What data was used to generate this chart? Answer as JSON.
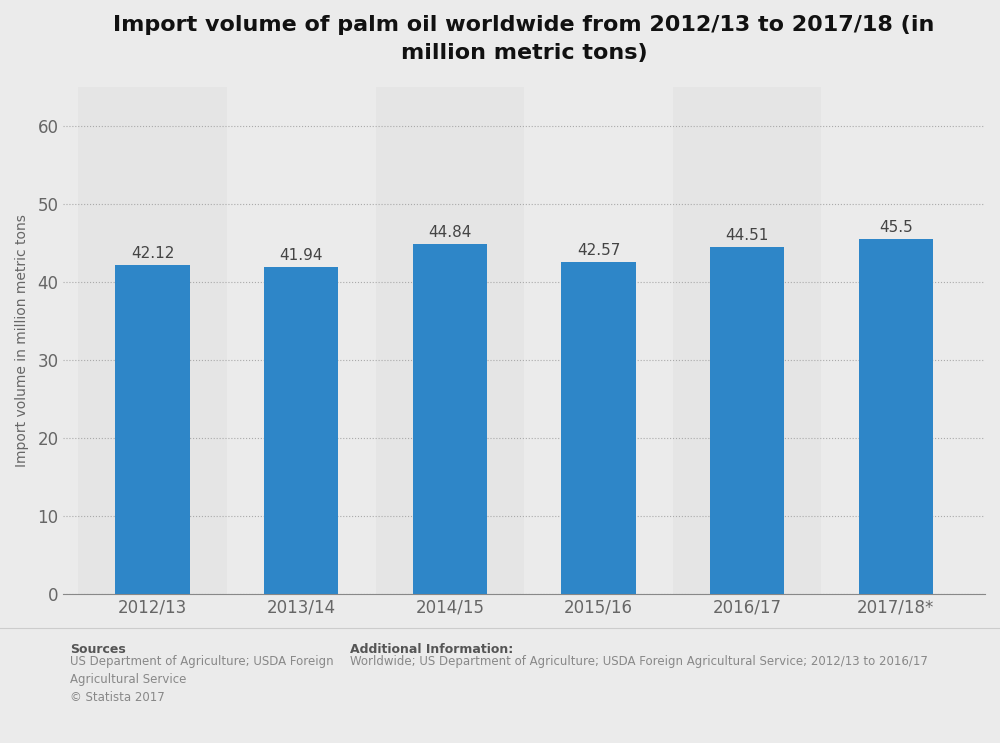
{
  "title": "Import volume of palm oil worldwide from 2012/13 to 2017/18 (in\nmillion metric tons)",
  "categories": [
    "2012/13",
    "2013/14",
    "2014/15",
    "2015/16",
    "2016/17",
    "2017/18*"
  ],
  "values": [
    42.12,
    41.94,
    44.84,
    42.57,
    44.51,
    45.5
  ],
  "bar_color": "#2E86C8",
  "ylabel": "Import volume in million metric tons",
  "ylim": [
    0,
    65
  ],
  "yticks": [
    0,
    10,
    20,
    30,
    40,
    50,
    60
  ],
  "background_color": "#ebebeb",
  "plot_bg_color": "#ebebeb",
  "col_band_color": "#e0e0e0",
  "title_fontsize": 16,
  "label_fontsize": 11,
  "tick_fontsize": 12,
  "ylabel_fontsize": 10,
  "sources_label": "Sources",
  "sources_body": "US Department of Agriculture; USDA Foreign\nAgricultural Service\n© Statista 2017",
  "additional_label": "Additional Information:",
  "additional_body": "Worldwide; US Department of Agriculture; USDA Foreign Agricultural Service; 2012/13 to 2016/17"
}
